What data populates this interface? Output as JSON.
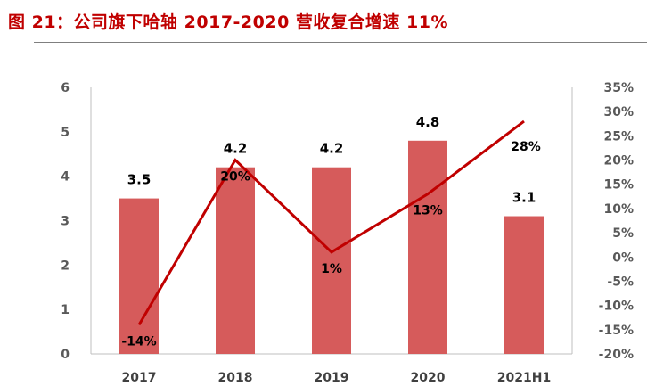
{
  "figure": {
    "title": "图  21：公司旗下哈轴 2017-2020 营收复合增速 11%"
  },
  "colors": {
    "title": "#c00000",
    "bar": "#d65b5b",
    "line": "#c00000",
    "axis": "#bfbfbf"
  },
  "chart_data": {
    "type": "bar",
    "categories": [
      "2017",
      "2018",
      "2019",
      "2020",
      "2021H1"
    ],
    "series": [
      {
        "type": "bar",
        "axis": "left",
        "values": [
          3.5,
          4.2,
          4.2,
          4.8,
          3.1
        ],
        "labels": [
          "3.5",
          "4.2",
          "4.2",
          "4.8",
          "3.1"
        ]
      },
      {
        "type": "line",
        "axis": "right",
        "values": [
          -14,
          20,
          1,
          13,
          28
        ],
        "labels": [
          "-14%",
          "20%",
          "1%",
          "13%",
          "28%"
        ]
      }
    ],
    "y_left": {
      "min": 0,
      "max": 6,
      "ticks": [
        "0",
        "1",
        "2",
        "3",
        "4",
        "5",
        "6"
      ]
    },
    "y_right": {
      "min": -20,
      "max": 35,
      "ticks": [
        "-20%",
        "-15%",
        "-10%",
        "-5%",
        "0%",
        "5%",
        "10%",
        "15%",
        "20%",
        "25%",
        "30%",
        "35%"
      ]
    },
    "grid": false,
    "legend": "none"
  }
}
